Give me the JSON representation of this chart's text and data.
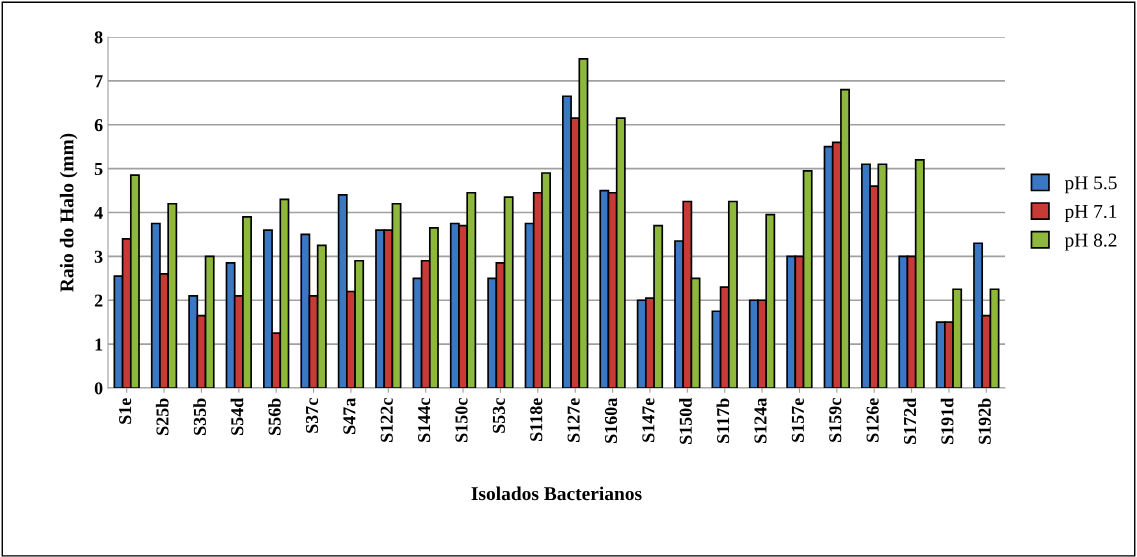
{
  "chart_data": {
    "type": "bar",
    "xlabel": "Isolados Bacterianos",
    "ylabel": "Raio do Halo (mm)",
    "categories": [
      "S1e",
      "S25b",
      "S35b",
      "S54d",
      "S56b",
      "S37c",
      "S47a",
      "S122c",
      "S144c",
      "S150c",
      "S53c",
      "S118e",
      "S127e",
      "S160a",
      "S147e",
      "S150d",
      "S117b",
      "S124a",
      "S157e",
      "S159c",
      "S126e",
      "S172d",
      "S191d",
      "S192b"
    ],
    "series": [
      {
        "name": "pH 5.5",
        "color": "#3a78c4",
        "values": [
          2.55,
          3.75,
          2.1,
          2.85,
          3.6,
          3.5,
          4.4,
          3.6,
          2.5,
          3.75,
          2.5,
          3.75,
          6.65,
          4.5,
          2.0,
          3.35,
          1.75,
          2.0,
          3.0,
          5.5,
          5.1,
          3.0,
          1.5,
          3.3
        ]
      },
      {
        "name": "pH 7.1",
        "color": "#c83a36",
        "values": [
          3.4,
          2.6,
          1.65,
          2.1,
          1.25,
          2.1,
          2.2,
          3.6,
          2.9,
          3.7,
          2.85,
          4.45,
          6.15,
          4.45,
          2.05,
          4.25,
          2.3,
          2.0,
          3.0,
          5.6,
          4.6,
          3.0,
          1.5,
          1.65
        ]
      },
      {
        "name": "pH 8.2",
        "color": "#8db83c",
        "values": [
          4.85,
          4.2,
          3.0,
          3.9,
          4.3,
          3.25,
          2.9,
          4.2,
          3.65,
          4.45,
          4.35,
          4.9,
          7.5,
          6.15,
          3.7,
          2.5,
          4.25,
          3.95,
          4.95,
          6.8,
          5.1,
          5.2,
          2.25,
          2.25
        ]
      }
    ],
    "ylim": [
      0,
      8
    ],
    "yticks": [
      0,
      1,
      2,
      3,
      4,
      5,
      6,
      7,
      8
    ],
    "grid": "y",
    "legend": "right"
  }
}
